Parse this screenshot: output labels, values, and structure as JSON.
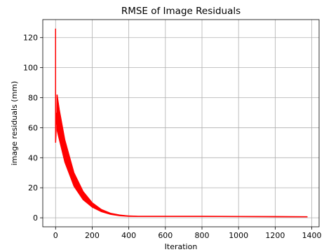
{
  "chart_data": {
    "type": "line",
    "title": "RMSE of Image Residuals",
    "xlabel": "Iteration",
    "ylabel": "image residuals (mm)",
    "xlim": [
      -70,
      1440
    ],
    "ylim": [
      -6,
      132
    ],
    "xticks": [
      0,
      200,
      400,
      600,
      800,
      1000,
      1200,
      1400
    ],
    "yticks": [
      0,
      20,
      40,
      60,
      80,
      100,
      120
    ],
    "grid": true,
    "series": [
      {
        "color": "#ff0000",
        "spike": [
          [
            0,
            126
          ],
          [
            0,
            50
          ],
          [
            2,
            55
          ],
          [
            4,
            70
          ],
          [
            6,
            62
          ],
          [
            8,
            82
          ]
        ],
        "upper_envelope": [
          [
            8,
            82
          ],
          [
            20,
            72
          ],
          [
            50,
            52
          ],
          [
            100,
            30
          ],
          [
            150,
            17.5
          ],
          [
            200,
            10
          ],
          [
            250,
            5.5
          ],
          [
            300,
            3
          ],
          [
            350,
            1.8
          ],
          [
            400,
            1.2
          ],
          [
            450,
            1
          ],
          [
            600,
            1
          ],
          [
            800,
            1
          ],
          [
            1000,
            0.9
          ],
          [
            1200,
            0.8
          ],
          [
            1375,
            0.7
          ]
        ],
        "lower_envelope": [
          [
            8,
            58
          ],
          [
            20,
            52
          ],
          [
            50,
            37
          ],
          [
            100,
            21
          ],
          [
            150,
            12
          ],
          [
            200,
            7
          ],
          [
            250,
            4
          ],
          [
            300,
            2.2
          ],
          [
            350,
            1.3
          ],
          [
            400,
            0.9
          ],
          [
            450,
            0.8
          ],
          [
            600,
            0.8
          ],
          [
            800,
            0.8
          ],
          [
            1000,
            0.7
          ],
          [
            1200,
            0.6
          ],
          [
            1375,
            0.5
          ]
        ]
      }
    ]
  }
}
